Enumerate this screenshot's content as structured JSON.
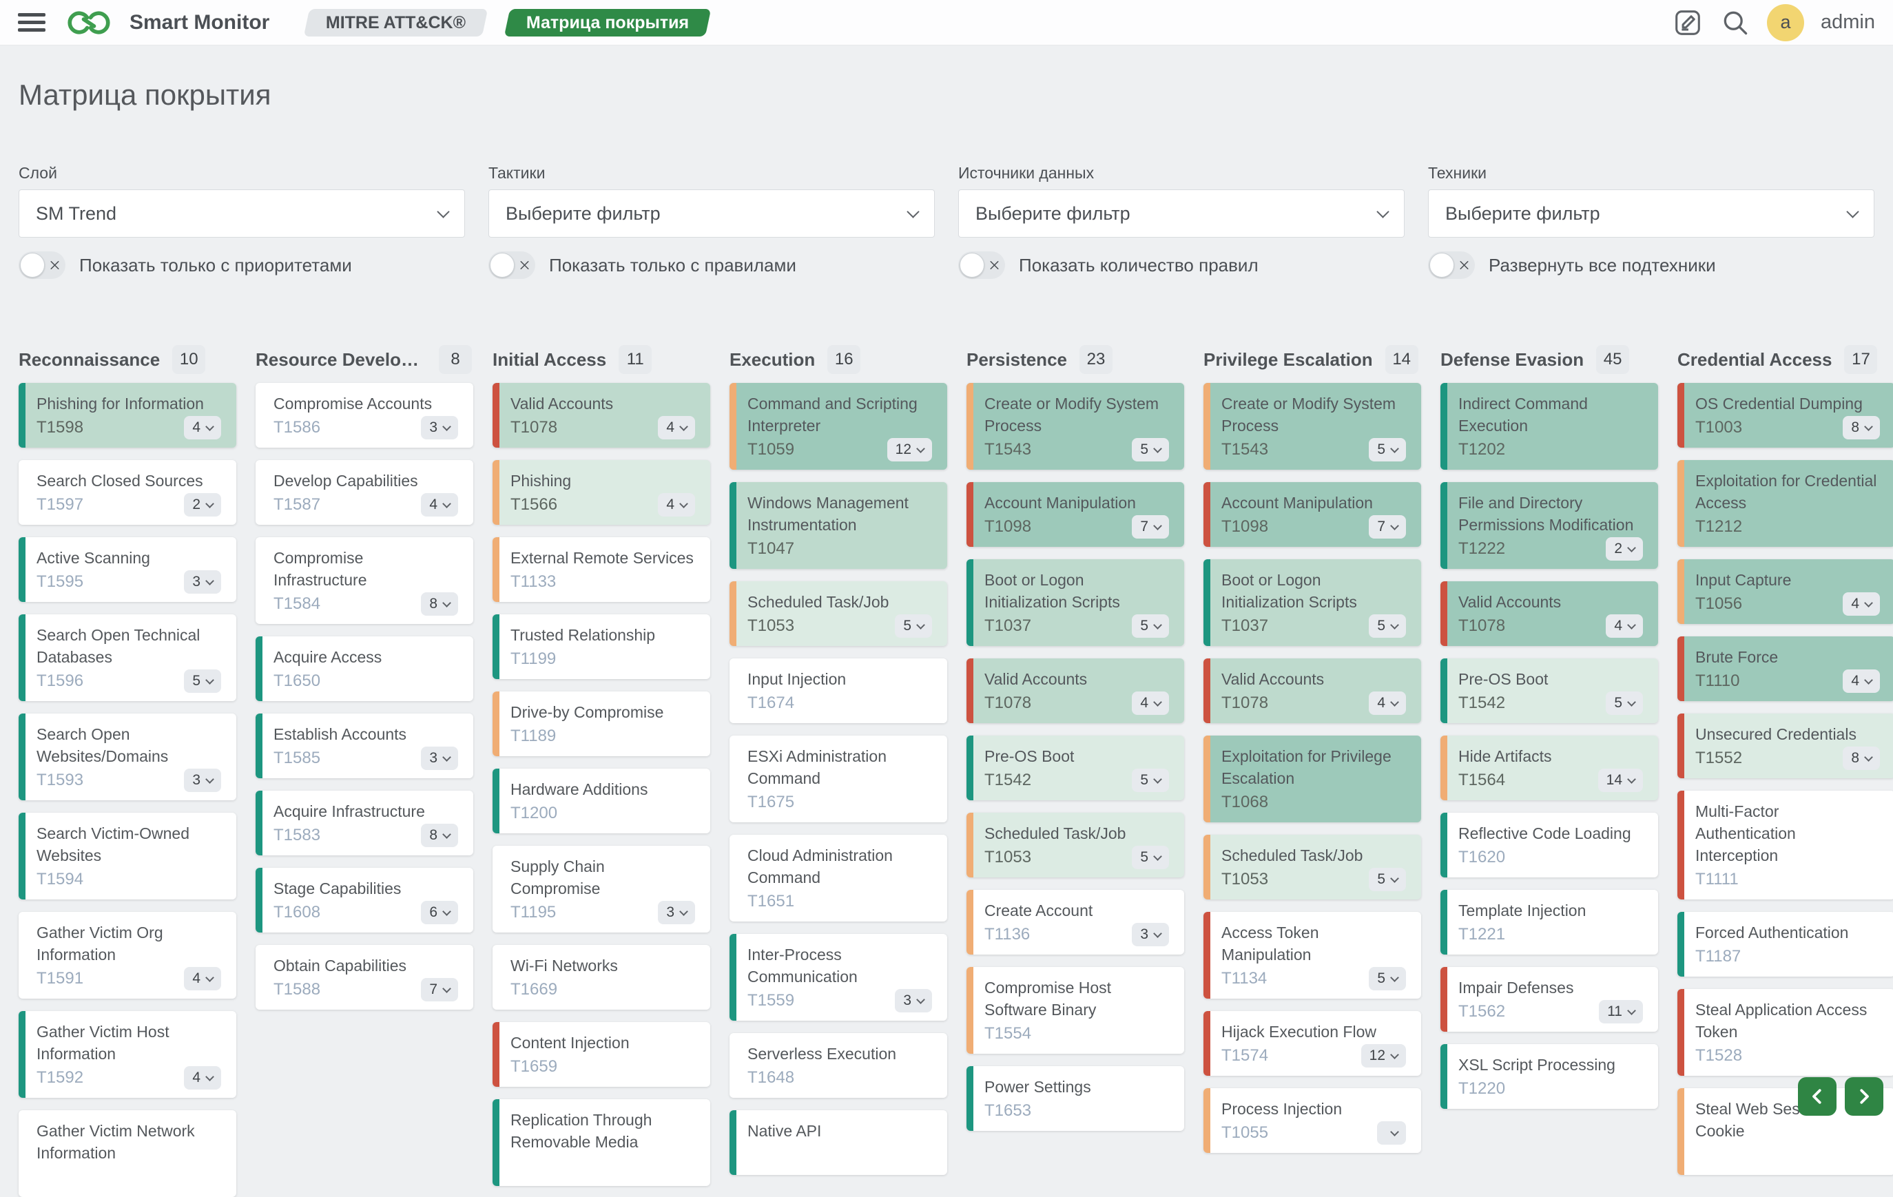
{
  "topbar": {
    "app_name": "Smart Monitor",
    "badge_secondary": "MITRE ATT&CK®",
    "badge_primary": "Матрица покрытия",
    "username": "admin",
    "avatar_letter": "a"
  },
  "page": {
    "title": "Матрица покрытия"
  },
  "icons": {
    "left": "menu-icon, infinity-logo",
    "right": "edit-icon, search-icon, avatar, chevron-left-icon, chevron-right-icon"
  },
  "colors": {
    "accent_green": "#2f8a47",
    "nav_button_green": "#2f8544",
    "edge_green": "#1d9680",
    "edge_orange": "#f0ad74",
    "edge_red": "#cd5240",
    "tint_l1": "#dcebe3",
    "tint_l2": "#bedacd",
    "tint_l3": "#9dc9ba",
    "avatar_bg": "#f2d571"
  },
  "filters": [
    {
      "label": "Слой",
      "value": "SM Trend",
      "toggle_label": "Показать только с приоритетами"
    },
    {
      "label": "Тактики",
      "value": "Выберите фильтр",
      "toggle_label": "Показать только с правилами"
    },
    {
      "label": "Источники данных",
      "value": "Выберите фильтр",
      "toggle_label": "Показать количество правил"
    },
    {
      "label": "Техники",
      "value": "Выберите фильтр",
      "toggle_label": "Развернуть все подтехники"
    }
  ],
  "columns": [
    {
      "name": "Reconnaissance",
      "count": "10",
      "cards": [
        {
          "title": "Phishing for Information",
          "id": "T1598",
          "badge": "4",
          "border": "green",
          "bg": "l2"
        },
        {
          "title": "Search Closed Sources",
          "id": "T1597",
          "badge": "2",
          "border": null,
          "bg": null
        },
        {
          "title": "Active Scanning",
          "id": "T1595",
          "badge": "3",
          "border": "green",
          "bg": null
        },
        {
          "title": "Search Open Technical Databases",
          "id": "T1596",
          "badge": "5",
          "border": "green",
          "bg": null
        },
        {
          "title": "Search Open Websites/Domains",
          "id": "T1593",
          "badge": "3",
          "border": "green",
          "bg": null
        },
        {
          "title": "Search Victim-Owned Websites",
          "id": "T1594",
          "badge": null,
          "border": "green",
          "bg": null
        },
        {
          "title": "Gather Victim Org Information",
          "id": "T1591",
          "badge": "4",
          "border": null,
          "bg": null
        },
        {
          "title": "Gather Victim Host Information",
          "id": "T1592",
          "badge": "4",
          "border": "green",
          "bg": null
        },
        {
          "title": "Gather Victim Network Information",
          "id": "",
          "badge": null,
          "border": null,
          "bg": null
        }
      ]
    },
    {
      "name": "Resource Development",
      "count": "8",
      "cards": [
        {
          "title": "Compromise Accounts",
          "id": "T1586",
          "badge": "3",
          "border": null,
          "bg": null
        },
        {
          "title": "Develop Capabilities",
          "id": "T1587",
          "badge": "4",
          "border": null,
          "bg": null
        },
        {
          "title": "Compromise Infrastructure",
          "id": "T1584",
          "badge": "8",
          "border": null,
          "bg": null
        },
        {
          "title": "Acquire Access",
          "id": "T1650",
          "badge": null,
          "border": "green",
          "bg": null
        },
        {
          "title": "Establish Accounts",
          "id": "T1585",
          "badge": "3",
          "border": "green",
          "bg": null
        },
        {
          "title": "Acquire Infrastructure",
          "id": "T1583",
          "badge": "8",
          "border": "green",
          "bg": null
        },
        {
          "title": "Stage Capabilities",
          "id": "T1608",
          "badge": "6",
          "border": "green",
          "bg": null
        },
        {
          "title": "Obtain Capabilities",
          "id": "T1588",
          "badge": "7",
          "border": null,
          "bg": null
        }
      ]
    },
    {
      "name": "Initial Access",
      "count": "11",
      "cards": [
        {
          "title": "Valid Accounts",
          "id": "T1078",
          "badge": "4",
          "border": "red",
          "bg": "l2"
        },
        {
          "title": "Phishing",
          "id": "T1566",
          "badge": "4",
          "border": "orange",
          "bg": "l1"
        },
        {
          "title": "External Remote Services",
          "id": "T1133",
          "badge": null,
          "border": "orange",
          "bg": null
        },
        {
          "title": "Trusted Relationship",
          "id": "T1199",
          "badge": null,
          "border": "green",
          "bg": null
        },
        {
          "title": "Drive-by Compromise",
          "id": "T1189",
          "badge": null,
          "border": "orange",
          "bg": null
        },
        {
          "title": "Hardware Additions",
          "id": "T1200",
          "badge": null,
          "border": "green",
          "bg": null
        },
        {
          "title": "Supply Chain Compromise",
          "id": "T1195",
          "badge": "3",
          "border": null,
          "bg": null
        },
        {
          "title": "Wi-Fi Networks",
          "id": "T1669",
          "badge": null,
          "border": null,
          "bg": null
        },
        {
          "title": "Content Injection",
          "id": "T1659",
          "badge": null,
          "border": "red",
          "bg": null
        },
        {
          "title": "Replication Through Removable Media",
          "id": "",
          "badge": null,
          "border": "green",
          "bg": null
        }
      ]
    },
    {
      "name": "Execution",
      "count": "16",
      "cards": [
        {
          "title": "Command and Scripting Interpreter",
          "id": "T1059",
          "badge": "12",
          "border": "orange",
          "bg": "l3"
        },
        {
          "title": "Windows Management Instrumentation",
          "id": "T1047",
          "badge": null,
          "border": "green",
          "bg": "l2"
        },
        {
          "title": "Scheduled Task/Job",
          "id": "T1053",
          "badge": "5",
          "border": "orange",
          "bg": "l1"
        },
        {
          "title": "Input Injection",
          "id": "T1674",
          "badge": null,
          "border": null,
          "bg": null
        },
        {
          "title": "ESXi Administration Command",
          "id": "T1675",
          "badge": null,
          "border": null,
          "bg": null
        },
        {
          "title": "Cloud Administration Command",
          "id": "T1651",
          "badge": null,
          "border": null,
          "bg": null
        },
        {
          "title": "Inter-Process Communication",
          "id": "T1559",
          "badge": "3",
          "border": "green",
          "bg": null
        },
        {
          "title": "Serverless Execution",
          "id": "T1648",
          "badge": null,
          "border": null,
          "bg": null
        },
        {
          "title": "Native API",
          "id": "",
          "badge": null,
          "border": "green",
          "bg": null
        }
      ]
    },
    {
      "name": "Persistence",
      "count": "23",
      "cards": [
        {
          "title": "Create or Modify System Process",
          "id": "T1543",
          "badge": "5",
          "border": "orange",
          "bg": "l3"
        },
        {
          "title": "Account Manipulation",
          "id": "T1098",
          "badge": "7",
          "border": "red",
          "bg": "l3"
        },
        {
          "title": "Boot or Logon Initialization Scripts",
          "id": "T1037",
          "badge": "5",
          "border": "green",
          "bg": "l2"
        },
        {
          "title": "Valid Accounts",
          "id": "T1078",
          "badge": "4",
          "border": "red",
          "bg": "l2"
        },
        {
          "title": "Pre-OS Boot",
          "id": "T1542",
          "badge": "5",
          "border": "green",
          "bg": "l1"
        },
        {
          "title": "Scheduled Task/Job",
          "id": "T1053",
          "badge": "5",
          "border": "orange",
          "bg": "l1"
        },
        {
          "title": "Create Account",
          "id": "T1136",
          "badge": "3",
          "border": "orange",
          "bg": null
        },
        {
          "title": "Compromise Host Software Binary",
          "id": "T1554",
          "badge": null,
          "border": "orange",
          "bg": null
        },
        {
          "title": "Power Settings",
          "id": "T1653",
          "badge": null,
          "border": "green",
          "bg": null
        }
      ]
    },
    {
      "name": "Privilege Escalation",
      "count": "14",
      "cards": [
        {
          "title": "Create or Modify System Process",
          "id": "T1543",
          "badge": "5",
          "border": "orange",
          "bg": "l3"
        },
        {
          "title": "Account Manipulation",
          "id": "T1098",
          "badge": "7",
          "border": "red",
          "bg": "l3"
        },
        {
          "title": "Boot or Logon Initialization Scripts",
          "id": "T1037",
          "badge": "5",
          "border": "green",
          "bg": "l2"
        },
        {
          "title": "Valid Accounts",
          "id": "T1078",
          "badge": "4",
          "border": "red",
          "bg": "l2"
        },
        {
          "title": "Exploitation for Privilege Escalation",
          "id": "T1068",
          "badge": null,
          "border": "orange",
          "bg": "l3"
        },
        {
          "title": "Scheduled Task/Job",
          "id": "T1053",
          "badge": "5",
          "border": "orange",
          "bg": "l1"
        },
        {
          "title": "Access Token Manipulation",
          "id": "T1134",
          "badge": "5",
          "border": "red",
          "bg": null
        },
        {
          "title": "Hijack Execution Flow",
          "id": "T1574",
          "badge": "12",
          "border": "red",
          "bg": null
        },
        {
          "title": "Process Injection",
          "id": "T1055",
          "badge": "",
          "border": "orange",
          "bg": null
        }
      ]
    },
    {
      "name": "Defense Evasion",
      "count": "45",
      "cards": [
        {
          "title": "Indirect Command Execution",
          "id": "T1202",
          "badge": null,
          "border": "green",
          "bg": "l3"
        },
        {
          "title": "File and Directory Permissions Modification",
          "id": "T1222",
          "badge": "2",
          "border": "green",
          "bg": "l3"
        },
        {
          "title": "Valid Accounts",
          "id": "T1078",
          "badge": "4",
          "border": "red",
          "bg": "l3"
        },
        {
          "title": "Pre-OS Boot",
          "id": "T1542",
          "badge": "5",
          "border": "green",
          "bg": "l1"
        },
        {
          "title": "Hide Artifacts",
          "id": "T1564",
          "badge": "14",
          "border": "orange",
          "bg": "l1"
        },
        {
          "title": "Reflective Code Loading",
          "id": "T1620",
          "badge": null,
          "border": "green",
          "bg": null
        },
        {
          "title": "Template Injection",
          "id": "T1221",
          "badge": null,
          "border": "green",
          "bg": null
        },
        {
          "title": "Impair Defenses",
          "id": "T1562",
          "badge": "11",
          "border": "red",
          "bg": null
        },
        {
          "title": "XSL Script Processing",
          "id": "T1220",
          "badge": null,
          "border": "green",
          "bg": null
        }
      ]
    },
    {
      "name": "Credential Access",
      "count": "17",
      "cards": [
        {
          "title": "OS Credential Dumping",
          "id": "T1003",
          "badge": "8",
          "border": "red",
          "bg": "l3"
        },
        {
          "title": "Exploitation for Credential Access",
          "id": "T1212",
          "badge": null,
          "border": "orange",
          "bg": "l3"
        },
        {
          "title": "Input Capture",
          "id": "T1056",
          "badge": "4",
          "border": "orange",
          "bg": "l3"
        },
        {
          "title": "Brute Force",
          "id": "T1110",
          "badge": "4",
          "border": "red",
          "bg": "l3"
        },
        {
          "title": "Unsecured Credentials",
          "id": "T1552",
          "badge": "8",
          "border": "red",
          "bg": "l1"
        },
        {
          "title": "Multi-Factor Authentication Interception",
          "id": "T1111",
          "badge": null,
          "border": "red",
          "bg": null
        },
        {
          "title": "Forced Authentication",
          "id": "T1187",
          "badge": null,
          "border": "green",
          "bg": null
        },
        {
          "title": "Steal Application Access Token",
          "id": "T1528",
          "badge": null,
          "border": "red",
          "bg": null
        },
        {
          "title": "Steal Web Session Cookie",
          "id": "",
          "badge": null,
          "border": "orange",
          "bg": null
        }
      ]
    }
  ]
}
